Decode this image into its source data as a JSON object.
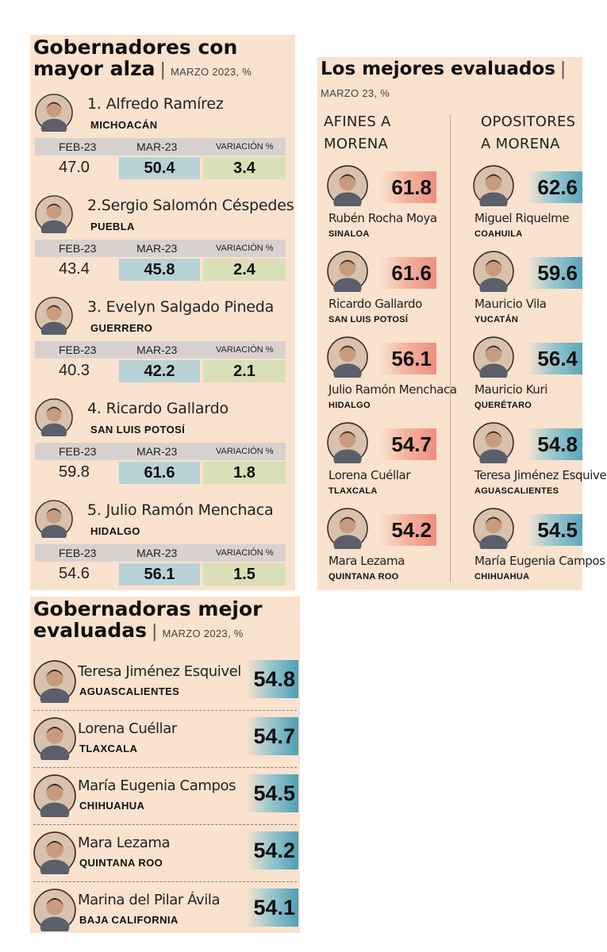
{
  "panel1": {
    "title_line1": "Gobernadores con",
    "title_line2": "mayor alza",
    "subtitle": "MARZO 2023, %",
    "headers": {
      "h1": "FEB-23",
      "h2": "MAR-23",
      "h3": "VARIACIÓN %"
    },
    "rows": [
      {
        "name": "1. Alfredo Ramírez",
        "state": "MICHOACÁN",
        "feb": "47.0",
        "mar": "50.4",
        "var": "3.4"
      },
      {
        "name": "2.Sergio Salomón Céspedes",
        "state": "PUEBLA",
        "feb": "43.4",
        "mar": "45.8",
        "var": "2.4"
      },
      {
        "name": "3. Evelyn Salgado Pineda",
        "state": "GUERRERO",
        "feb": "40.3",
        "mar": "42.2",
        "var": "2.1"
      },
      {
        "name": "4. Ricardo Gallardo",
        "state": "SAN LUIS POTOSÍ",
        "feb": "59.8",
        "mar": "61.6",
        "var": "1.8"
      },
      {
        "name": "5. Julio Ramón Menchaca",
        "state": "HIDALGO",
        "feb": "54.6",
        "mar": "56.1",
        "var": "1.5"
      }
    ]
  },
  "panel2": {
    "title": "Los mejores evaluados",
    "subtitle": "MARZO 23, %",
    "col1_line1": "AFINES A",
    "col1_line2": "MORENA",
    "col2_line1": "OPOSITORES",
    "col2_line2": "A MORENA",
    "afines": [
      {
        "name": "Rubén Rocha Moya",
        "state": "SINALOA",
        "score": "61.8"
      },
      {
        "name": "Ricardo Gallardo",
        "state": "SAN LUIS POTOSÍ",
        "score": "61.6"
      },
      {
        "name": "Julio Ramón Menchaca",
        "state": "HIDALGO",
        "score": "56.1"
      },
      {
        "name": "Lorena Cuéllar",
        "state": "TLAXCALA",
        "score": "54.7"
      },
      {
        "name": "Mara Lezama",
        "state": "QUINTANA ROO",
        "score": "54.2"
      }
    ],
    "opositores": [
      {
        "name": "Miguel Riquelme",
        "state": "COAHUILA",
        "score": "62.6"
      },
      {
        "name": "Mauricio Vila",
        "state": "YUCATÁN",
        "score": "59.6"
      },
      {
        "name": "Mauricio Kuri",
        "state": "QUERÉTARO",
        "score": "56.4"
      },
      {
        "name": "Teresa Jiménez Esquivel",
        "state": "AGUASCALIENTES",
        "score": "54.8"
      },
      {
        "name": "María Eugenia Campos",
        "state": "CHIHUAHUA",
        "score": "54.5"
      }
    ]
  },
  "panel3": {
    "title_line1": "Gobernadoras mejor",
    "title_line2": "evaluadas",
    "subtitle": "MARZO 2023, %",
    "rows": [
      {
        "name": "Teresa Jiménez Esquivel",
        "state": "AGUASCALIENTES",
        "score": "54.8"
      },
      {
        "name": "Lorena Cuéllar",
        "state": "TLAXCALA",
        "score": "54.7"
      },
      {
        "name": "María Eugenia Campos",
        "state": "CHIHUAHUA",
        "score": "54.5"
      },
      {
        "name": "Mara Lezama",
        "state": "QUINTANA ROO",
        "score": "54.2"
      },
      {
        "name": "Marina del Pilar Ávila",
        "state": "BAJA CALIFORNIA",
        "score": "54.1"
      }
    ]
  },
  "colors": {
    "panel_bg": "#f9e2ce",
    "header_gray": "#d7d2cf",
    "mar_blue": "#b9d2d6",
    "var_green": "#d9dfb6",
    "afines_red": "#ee8e80",
    "opositores_blue": "#5aa6ba"
  },
  "icons": {
    "portrait": "portrait-photo-icon"
  }
}
